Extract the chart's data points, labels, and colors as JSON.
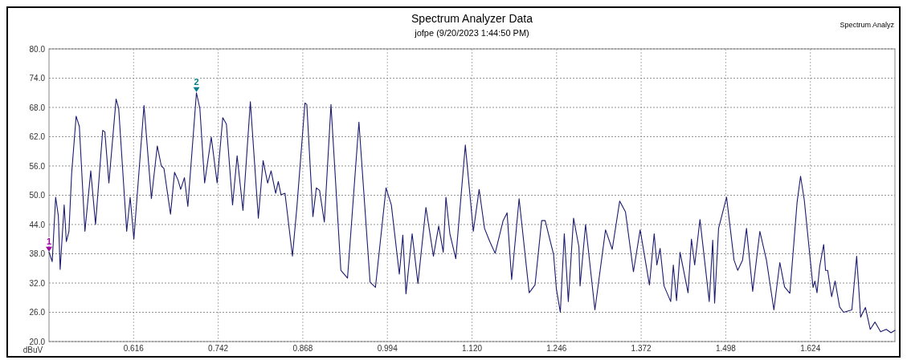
{
  "chart_data": {
    "type": "line",
    "title": "Spectrum Analyzer Data",
    "subtitle": "jofpe (9/20/2023 1:44:50 PM)",
    "ylabel": "dBuV",
    "annotations": [
      "Spectrum Analyz",
      {
        "text": "1",
        "x": 0.49,
        "y": 38.3
      },
      {
        "text": "2",
        "x": 0.7096,
        "y": 71.0
      }
    ],
    "xlim": [
      0.49,
      1.75
    ],
    "xticks": [
      {
        "value": 0.616,
        "label": "0.616"
      },
      {
        "value": 0.742,
        "label": "0.742"
      },
      {
        "value": 0.868,
        "label": "0.868"
      },
      {
        "value": 0.994,
        "label": "0.994"
      },
      {
        "value": 1.12,
        "label": "1.120"
      },
      {
        "value": 1.246,
        "label": "1.246"
      },
      {
        "value": 1.372,
        "label": "1.372"
      },
      {
        "value": 1.498,
        "label": "1.498"
      },
      {
        "value": 1.624,
        "label": "1.624"
      }
    ],
    "ylim": [
      20,
      80
    ],
    "yticks": [
      {
        "value": 20,
        "label": "20.0"
      },
      {
        "value": 26,
        "label": "26.0"
      },
      {
        "value": 32,
        "label": "32.0"
      },
      {
        "value": 38,
        "label": "38.0"
      },
      {
        "value": 44,
        "label": "44.0"
      },
      {
        "value": 50,
        "label": "50.0"
      },
      {
        "value": 56,
        "label": "56.0"
      },
      {
        "value": 62,
        "label": "62.0"
      },
      {
        "value": 68,
        "label": "68.0"
      },
      {
        "value": 74,
        "label": "74.0"
      },
      {
        "value": 80,
        "label": "80.0"
      }
    ],
    "grid": true,
    "line_style": "solid",
    "marker": "none",
    "series": [
      {
        "color": "#1c1c70",
        "x": [
          0.49,
          0.4948,
          0.4999,
          0.5039,
          0.5066,
          0.5126,
          0.5158,
          0.5197,
          0.5237,
          0.5304,
          0.5352,
          0.5435,
          0.5522,
          0.5593,
          0.57,
          0.5732,
          0.5792,
          0.5899,
          0.5938,
          0.6057,
          0.6109,
          0.6164,
          0.6315,
          0.6425,
          0.6513,
          0.6573,
          0.6612,
          0.671,
          0.677,
          0.6822,
          0.6861,
          0.6917,
          0.6968,
          0.7096,
          0.7147,
          0.7218,
          0.7317,
          0.7404,
          0.7488,
          0.7542,
          0.7634,
          0.7702,
          0.7789,
          0.7899,
          0.8018,
          0.8089,
          0.8157,
          0.8208,
          0.8276,
          0.8315,
          0.8356,
          0.8415,
          0.8526,
          0.8593,
          0.8712,
          0.874,
          0.8831,
          0.8882,
          0.893,
          0.9001,
          0.91,
          0.9247,
          0.9346,
          0.9516,
          0.9682,
          0.9762,
          0.992,
          0.9999,
          1.0118,
          1.017,
          1.0217,
          1.0309,
          1.0395,
          1.0514,
          1.0626,
          1.0704,
          1.0772,
          1.0812,
          1.0871,
          1.0959,
          1.1101,
          1.122,
          1.1307,
          1.1387,
          1.1465,
          1.1545,
          1.1664,
          1.1723,
          1.1791,
          1.1902,
          1.2052,
          1.2139,
          1.2238,
          1.229,
          1.2416,
          1.2457,
          1.2516,
          1.2575,
          1.2635,
          1.2713,
          1.2793,
          1.281,
          1.2892,
          1.3031,
          1.3189,
          1.3289,
          1.34,
          1.3486,
          1.3605,
          1.3705,
          1.3843,
          1.3914,
          1.3954,
          1.4002,
          1.4061,
          1.416,
          1.4199,
          1.4247,
          1.4299,
          1.4418,
          1.4469,
          1.4517,
          1.4596,
          1.4734,
          1.4786,
          1.4814,
          1.4873,
          1.4992,
          1.5103,
          1.5158,
          1.523,
          1.5289,
          1.5381,
          1.5488,
          1.5586,
          1.5697,
          1.5785,
          1.5856,
          1.5935,
          1.6042,
          1.6094,
          1.6149,
          1.628,
          1.6308,
          1.6339,
          1.6379,
          1.6439,
          1.6466,
          1.6498,
          1.6557,
          1.6609,
          1.6676,
          1.6736,
          1.6858,
          1.693,
          1.6989,
          1.706,
          1.7132,
          1.7203,
          1.7286,
          1.737,
          1.7441,
          1.75
        ],
        "values": [
          38.3,
          36.4,
          49.6,
          45.8,
          34.8,
          48.0,
          40.5,
          42.6,
          54.4,
          66.2,
          64.1,
          42.6,
          55.0,
          44.0,
          63.3,
          63.0,
          52.5,
          69.7,
          67.8,
          42.6,
          49.6,
          41.0,
          68.4,
          49.3,
          60.1,
          56.0,
          55.5,
          46.1,
          54.7,
          53.1,
          51.2,
          53.6,
          47.7,
          71.0,
          67.8,
          52.5,
          61.9,
          52.5,
          65.9,
          64.6,
          48.0,
          58.1,
          46.9,
          69.2,
          45.3,
          57.1,
          52.5,
          55.0,
          50.4,
          52.8,
          50.1,
          50.4,
          37.5,
          47.7,
          68.9,
          68.6,
          45.6,
          51.5,
          51.0,
          44.5,
          68.6,
          34.6,
          33.0,
          65.0,
          32.2,
          31.1,
          51.5,
          48.0,
          33.8,
          41.8,
          29.8,
          42.1,
          31.9,
          47.5,
          37.5,
          43.7,
          38.3,
          49.6,
          42.1,
          37.0,
          60.3,
          42.6,
          51.2,
          43.2,
          40.5,
          38.1,
          44.8,
          46.4,
          32.7,
          49.3,
          30.0,
          31.6,
          44.8,
          44.8,
          37.8,
          30.8,
          26.0,
          42.1,
          28.2,
          45.3,
          39.4,
          31.4,
          44.0,
          26.5,
          42.9,
          38.9,
          48.8,
          46.6,
          34.3,
          42.9,
          31.6,
          42.1,
          35.7,
          39.1,
          31.4,
          28.2,
          35.7,
          28.4,
          38.3,
          30.0,
          41.0,
          35.7,
          45.0,
          28.2,
          40.8,
          27.9,
          43.2,
          49.6,
          36.7,
          34.6,
          36.7,
          43.2,
          30.3,
          42.6,
          36.7,
          26.5,
          36.2,
          31.2,
          29.9,
          48.5,
          53.9,
          49.1,
          31.1,
          32.4,
          30.0,
          35.4,
          39.9,
          34.6,
          34.6,
          29.2,
          32.4,
          27.1,
          26.0,
          26.5,
          37.5,
          25.0,
          27.0,
          22.5,
          24.0,
          22.0,
          22.5,
          21.8,
          22.3
        ]
      }
    ]
  }
}
